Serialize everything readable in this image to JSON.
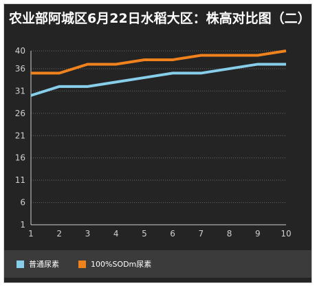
{
  "chart_data": {
    "type": "line",
    "title": "农业部阿城区6月22日水稻大区：株高对比图（二）",
    "xlabel": "",
    "ylabel": "",
    "x": [
      1,
      2,
      3,
      4,
      5,
      6,
      7,
      8,
      9,
      10
    ],
    "ylim": [
      1,
      40
    ],
    "yticks": [
      1,
      6,
      11,
      16,
      21,
      26,
      31,
      36,
      40
    ],
    "grid": true,
    "legend_position": "bottom-left",
    "series": [
      {
        "name": "普通尿素",
        "color": "#87ceeb",
        "values": [
          30,
          32,
          32,
          33,
          34,
          35,
          35,
          36,
          37,
          37
        ]
      },
      {
        "name": "100%SODm尿素",
        "color": "#f0821e",
        "values": [
          35,
          35,
          37,
          37,
          38,
          38,
          39,
          39,
          39,
          40
        ]
      }
    ]
  }
}
